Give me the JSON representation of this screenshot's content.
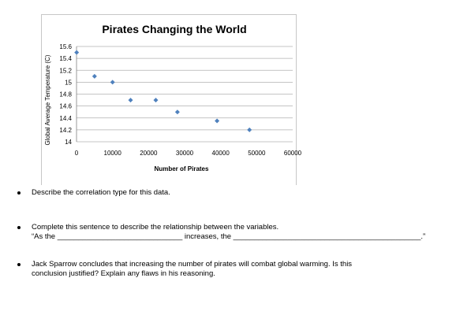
{
  "chart_data": {
    "type": "scatter",
    "title": "Pirates Changing the World",
    "xlabel": "Number of Pirates",
    "ylabel": "Global Average Temperature (C)",
    "xlim": [
      0,
      60000
    ],
    "ylim": [
      14,
      15.6
    ],
    "xticks": [
      "0",
      "10000",
      "20000",
      "30000",
      "40000",
      "50000",
      "60000"
    ],
    "yticks": [
      "14",
      "14.2",
      "14.4",
      "14.6",
      "14.8",
      "15",
      "15.2",
      "15.4",
      "15.6"
    ],
    "grid": true,
    "marker_color": "#4f81bd",
    "points": [
      {
        "x": 35,
        "y": 15.5
      },
      {
        "x": 5000,
        "y": 15.1
      },
      {
        "x": 10000,
        "y": 15.0
      },
      {
        "x": 15000,
        "y": 14.7
      },
      {
        "x": 22000,
        "y": 14.7
      },
      {
        "x": 28000,
        "y": 14.5
      },
      {
        "x": 39000,
        "y": 14.35
      },
      {
        "x": 48000,
        "y": 14.2
      }
    ]
  },
  "questions": {
    "q1": "Describe the correlation type for this data.",
    "q2_line1": "Complete this sentence to describe the relationship between the variables.",
    "q2_line2": "“As the ______________________________ increases, the _____________________________________________.”",
    "q3_line1": "Jack Sparrow concludes that increasing the number of pirates will combat global warming.  Is this",
    "q3_line2": "conclusion justified?  Explain any flaws in his reasoning."
  }
}
